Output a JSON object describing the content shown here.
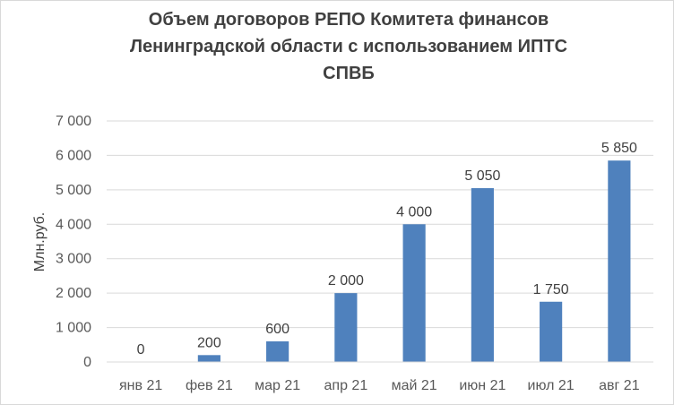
{
  "chart_data": {
    "type": "bar",
    "title": "Объем  договоров РЕПО Комитета финансов\nЛенинградской области с использованием ИПТС\nСПВБ",
    "ylabel": "Млн.руб.",
    "xlabel": "",
    "categories": [
      "янв 21",
      "фев 21",
      "мар 21",
      "апр 21",
      "май 21",
      "июн 21",
      "июл 21",
      "авг 21"
    ],
    "values": [
      0,
      200,
      600,
      2000,
      4000,
      5050,
      1750,
      5850
    ],
    "value_labels": [
      "0",
      "200",
      "600",
      "2 000",
      "4 000",
      "5 050",
      "1 750",
      "5 850"
    ],
    "ylim": [
      0,
      7000
    ],
    "y_ticks": [
      0,
      1000,
      2000,
      3000,
      4000,
      5000,
      6000,
      7000
    ],
    "y_tick_labels": [
      "0",
      "1 000",
      "2 000",
      "3 000",
      "4 000",
      "5 000",
      "6 000",
      "7 000"
    ],
    "grid": true,
    "legend": "none",
    "bar_color": "#4f81bd",
    "grid_color": "#d9d9d9"
  }
}
